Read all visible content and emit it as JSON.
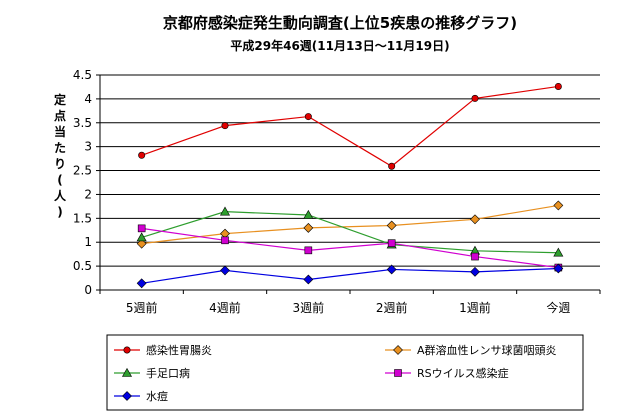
{
  "chart_data": {
    "type": "line",
    "title": "京都府感染症発生動向調査(上位5疾患の推移グラフ)",
    "subtitle": "平成29年46週(11月13日〜11月19日)",
    "ylabel": "定点当たり(人)",
    "xlabel": "",
    "categories": [
      "5週前",
      "4週前",
      "3週前",
      "2週前",
      "1週前",
      "今週"
    ],
    "ylim": [
      0,
      4.5
    ],
    "yticks": [
      "0",
      "0.5",
      "1",
      "1.5",
      "2",
      "2.5",
      "3",
      "3.5",
      "4",
      "4.5"
    ],
    "grid": true,
    "legend_position": "bottom",
    "series": [
      {
        "name": "感染性胃腸炎",
        "color": "#e00000",
        "marker": "circle",
        "values": [
          2.82,
          3.44,
          3.63,
          2.59,
          4.01,
          4.26
        ]
      },
      {
        "name": "A群溶血性レンサ球菌咽頭炎",
        "color": "#e89020",
        "marker": "diamond",
        "values": [
          0.97,
          1.18,
          1.3,
          1.35,
          1.48,
          1.77
        ]
      },
      {
        "name": "手足口病",
        "color": "#2e9e2e",
        "marker": "triangle",
        "values": [
          1.1,
          1.64,
          1.57,
          0.95,
          0.82,
          0.78
        ]
      },
      {
        "name": "RSウイルス感染症",
        "color": "#d000d0",
        "marker": "square",
        "values": [
          1.29,
          1.04,
          0.83,
          0.98,
          0.7,
          0.47
        ]
      },
      {
        "name": "水痘",
        "color": "#0000e0",
        "marker": "diamond",
        "values": [
          0.14,
          0.41,
          0.22,
          0.43,
          0.38,
          0.45
        ]
      }
    ]
  }
}
